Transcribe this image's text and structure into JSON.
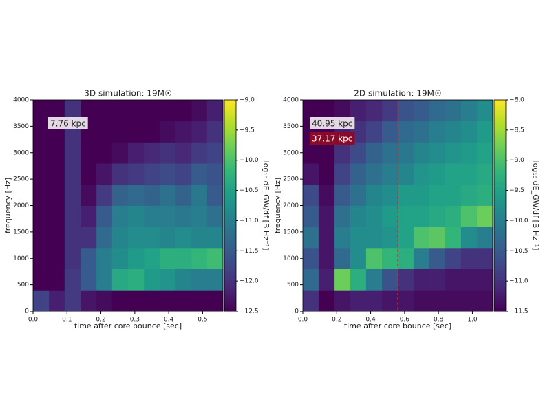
{
  "chart_data": [
    {
      "type": "heatmap",
      "title": "3D simulation: 19M☉",
      "xlabel": "time after core bounce [sec]",
      "ylabel": "frequency [Hz]",
      "colorbar_label": "log₁₀ dE_GW/df [B Hz⁻¹]",
      "xlim": [
        0,
        0.56
      ],
      "ylim": [
        0,
        4000
      ],
      "clim": [
        -12.5,
        -9
      ],
      "colormap": "viridis",
      "xticks": [
        {
          "value": 0,
          "label": "0.0"
        },
        0.1,
        0.2,
        0.3,
        0.4,
        0.5
      ],
      "yticks": [
        0,
        500,
        1000,
        1500,
        2000,
        2500,
        3000,
        3500,
        4000
      ],
      "cticks": [
        {
          "value": -9,
          "label": "−9.0"
        },
        {
          "value": -9.5,
          "label": "−9.5"
        },
        {
          "value": -10,
          "label": "−10.0"
        },
        {
          "value": -10.5,
          "label": "−10.5"
        },
        {
          "value": -11,
          "label": "−11.0"
        },
        {
          "value": -11.5,
          "label": "−11.5"
        },
        {
          "value": -12,
          "label": "−12.0"
        },
        {
          "value": -12.5,
          "label": "−12.5"
        }
      ],
      "xbins": [
        0,
        0.047,
        0.093,
        0.14,
        0.187,
        0.233,
        0.28,
        0.327,
        0.373,
        0.42,
        0.467,
        0.513,
        0.56
      ],
      "ybins": [
        0,
        400,
        800,
        1200,
        1600,
        2000,
        2400,
        2800,
        3200,
        3600,
        4000
      ],
      "values": [
        [
          -11.8,
          -12.2,
          -11.9,
          -12.3,
          -12.4,
          -12.5,
          -12.5,
          -12.5,
          -12.5,
          -12.5,
          -12.5,
          -12.5
        ],
        [
          -12.5,
          -12.5,
          -11.9,
          -11.5,
          -11.0,
          -10.4,
          -10.3,
          -10.6,
          -10.7,
          -10.9,
          -11.0,
          -11.0
        ],
        [
          -12.5,
          -12.5,
          -12.0,
          -11.5,
          -11.0,
          -10.8,
          -10.6,
          -10.5,
          -10.3,
          -10.3,
          -10.2,
          -10.1
        ],
        [
          -12.5,
          -12.5,
          -12.0,
          -12.0,
          -11.3,
          -10.9,
          -10.8,
          -10.8,
          -10.9,
          -10.8,
          -10.9,
          -10.9
        ],
        [
          -12.5,
          -12.5,
          -12.0,
          -12.2,
          -11.5,
          -11.0,
          -10.9,
          -11.0,
          -11.0,
          -11.1,
          -11.0,
          -11.2
        ],
        [
          -12.5,
          -12.5,
          -12.0,
          -12.4,
          -11.9,
          -11.4,
          -11.3,
          -11.4,
          -11.2,
          -11.4,
          -11.1,
          -11.5
        ],
        [
          -12.5,
          -12.5,
          -12.0,
          -12.5,
          -12.3,
          -12.0,
          -11.9,
          -11.8,
          -11.7,
          -11.8,
          -11.5,
          -11.6
        ],
        [
          -12.5,
          -12.5,
          -12.0,
          -12.5,
          -12.5,
          -12.4,
          -12.2,
          -12.1,
          -12.0,
          -12.1,
          -11.9,
          -11.8
        ],
        [
          -12.5,
          -12.5,
          -12.0,
          -12.5,
          -12.5,
          -12.5,
          -12.5,
          -12.5,
          -12.4,
          -12.3,
          -12.2,
          -12.0
        ],
        [
          -12.5,
          -12.5,
          -12.0,
          -12.5,
          -12.5,
          -12.5,
          -12.5,
          -12.5,
          -12.5,
          -12.5,
          -12.4,
          -12.2
        ]
      ],
      "annotations": [
        {
          "text": "7.76 kpc",
          "color": "#e3d8e3"
        }
      ]
    },
    {
      "type": "heatmap",
      "title": "2D simulation: 19M☉",
      "xlabel": "time after core bounce [sec]",
      "ylabel": "frequency [Hz]",
      "colorbar_label": "log₁₀ dE_GW/df [B Hz⁻¹]",
      "xlim": [
        0,
        1.12
      ],
      "ylim": [
        0,
        4000
      ],
      "clim": [
        -11.5,
        -8
      ],
      "colormap": "viridis",
      "xticks": [
        {
          "value": 0,
          "label": "0.0"
        },
        0.2,
        0.4,
        0.6,
        0.8,
        {
          "value": 1,
          "label": "1.0"
        }
      ],
      "yticks": [
        0,
        500,
        1000,
        1500,
        2000,
        2500,
        3000,
        3500,
        4000
      ],
      "cticks": [
        {
          "value": -8,
          "label": "−8.0"
        },
        {
          "value": -8.5,
          "label": "−8.5"
        },
        {
          "value": -9,
          "label": "−9.0"
        },
        {
          "value": -9.5,
          "label": "−9.5"
        },
        {
          "value": -10,
          "label": "−10.0"
        },
        {
          "value": -10.5,
          "label": "−10.5"
        },
        {
          "value": -11,
          "label": "−11.0"
        },
        {
          "value": -11.5,
          "label": "−11.5"
        }
      ],
      "xbins": [
        0,
        0.093,
        0.187,
        0.28,
        0.373,
        0.467,
        0.56,
        0.653,
        0.747,
        0.84,
        0.933,
        1.027,
        1.12
      ],
      "ybins": [
        0,
        400,
        800,
        1200,
        1600,
        2000,
        2400,
        2800,
        3200,
        3600,
        4000
      ],
      "values": [
        [
          -11.0,
          -11.5,
          -11.3,
          -11.2,
          -11.2,
          -11.3,
          -11.3,
          -11.4,
          -11.4,
          -11.4,
          -11.4,
          -11.4
        ],
        [
          -10.3,
          -11.2,
          -8.8,
          -9.3,
          -10.0,
          -10.6,
          -11.0,
          -11.2,
          -11.2,
          -11.3,
          -11.3,
          -11.3
        ],
        [
          -10.6,
          -11.3,
          -10.3,
          -9.8,
          -9.0,
          -9.2,
          -9.3,
          -10.0,
          -10.5,
          -10.8,
          -11.0,
          -11.0
        ],
        [
          -10.2,
          -11.3,
          -10.0,
          -9.8,
          -9.8,
          -9.7,
          -9.5,
          -9.0,
          -8.9,
          -9.2,
          -9.8,
          -10.0
        ],
        [
          -10.5,
          -11.3,
          -10.2,
          -9.9,
          -9.8,
          -9.6,
          -9.5,
          -9.5,
          -9.4,
          -9.3,
          -9.0,
          -8.8
        ],
        [
          -10.7,
          -11.4,
          -10.5,
          -10.2,
          -9.9,
          -9.8,
          -9.6,
          -9.6,
          -9.5,
          -9.5,
          -9.4,
          -9.3
        ],
        [
          -11.3,
          -11.5,
          -10.8,
          -10.4,
          -10.2,
          -10.0,
          -9.9,
          -9.7,
          -9.6,
          -9.5,
          -9.5,
          -9.4
        ],
        [
          -11.5,
          -11.5,
          -11.0,
          -10.7,
          -10.4,
          -10.2,
          -10.1,
          -9.9,
          -9.8,
          -9.7,
          -9.6,
          -9.5
        ],
        [
          -11.5,
          -11.5,
          -11.2,
          -11.0,
          -10.8,
          -10.5,
          -10.3,
          -10.2,
          -10.0,
          -9.9,
          -9.8,
          -9.6
        ],
        [
          -11.5,
          -11.5,
          -11.4,
          -11.2,
          -11.1,
          -10.9,
          -10.6,
          -10.5,
          -10.3,
          -10.2,
          -10.0,
          -9.8
        ]
      ],
      "vline": {
        "x": 0.56,
        "color": "#d62728"
      },
      "annotations": [
        {
          "text": "40.95 kpc",
          "color": "#e3d8e3"
        },
        {
          "text": "37.17 kpc",
          "color": "#8b0a2a"
        }
      ]
    }
  ]
}
